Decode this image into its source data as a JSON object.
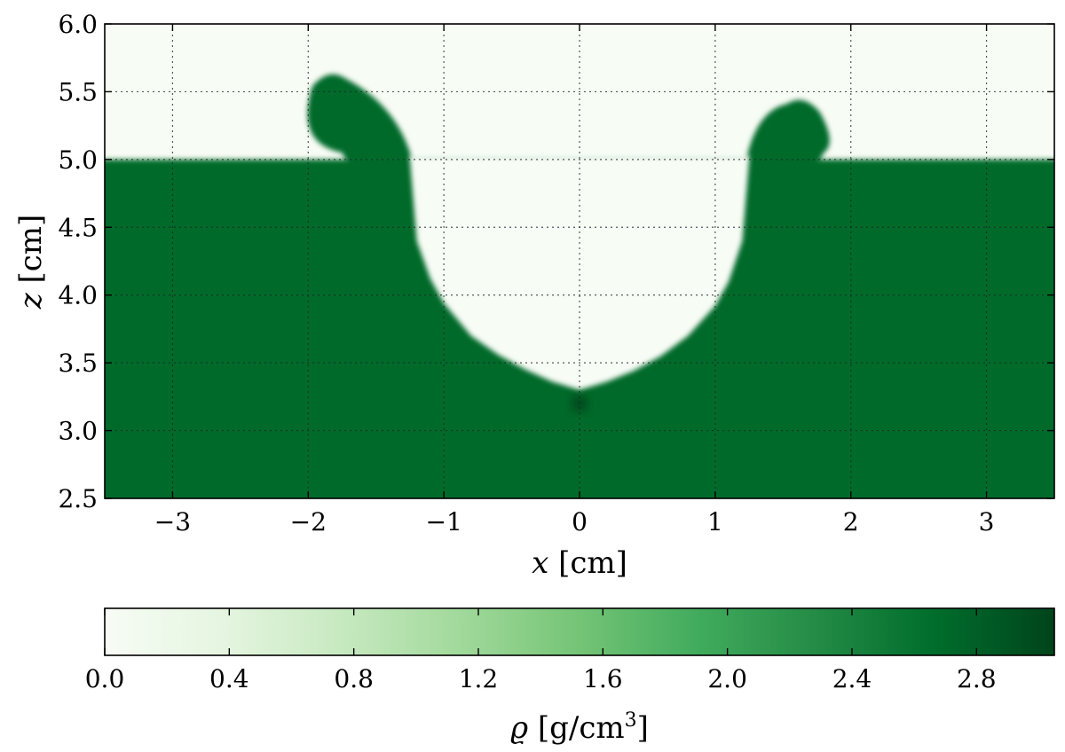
{
  "chart_data": {
    "type": "heatmap",
    "title": "",
    "xlabel": {
      "var": "x",
      "unit": "[cm]"
    },
    "ylabel": {
      "var": "z",
      "unit": "[cm]"
    },
    "xlim": [
      -3.5,
      3.5
    ],
    "ylim": [
      2.5,
      6.0
    ],
    "xticks": [
      -3,
      -2,
      -1,
      0,
      1,
      2,
      3
    ],
    "xtick_labels": [
      "−3",
      "−2",
      "−1",
      "0",
      "1",
      "2",
      "3"
    ],
    "yticks": [
      2.5,
      3.0,
      3.5,
      4.0,
      4.5,
      5.0,
      5.5,
      6.0
    ],
    "ytick_labels": [
      "2.5",
      "3.0",
      "3.5",
      "4.0",
      "4.5",
      "5.0",
      "5.5",
      "6.0"
    ],
    "grid": true,
    "colormap": "Greens",
    "colormap_stops": [
      "#f7fcf5",
      "#e5f5e0",
      "#c7e9c0",
      "#a1d99b",
      "#74c476",
      "#41ab5d",
      "#238b45",
      "#006d2c",
      "#00441b"
    ],
    "background_density": 0.0,
    "material_density": 2.55,
    "material_color": "#006a2c",
    "surface_z": 5.0,
    "cavity_profile": {
      "x": [
        -1.25,
        -1.2,
        -1.1,
        -1.0,
        -0.8,
        -0.6,
        -0.4,
        -0.2,
        0.0,
        0.2,
        0.4,
        0.6,
        0.8,
        1.0,
        1.1,
        1.2,
        1.25
      ],
      "z": [
        5.0,
        4.4,
        4.12,
        3.94,
        3.7,
        3.56,
        3.45,
        3.36,
        3.3,
        3.36,
        3.44,
        3.55,
        3.7,
        3.92,
        4.1,
        4.4,
        5.0
      ]
    },
    "rims": [
      {
        "side": "left",
        "base_x": [
          -1.7,
          -1.2
        ],
        "lip_x": -1.85,
        "lip_z": 5.62
      },
      {
        "side": "right",
        "base_x": [
          1.2,
          1.75
        ],
        "lip_x": 1.65,
        "lip_z": 5.43
      }
    ],
    "dense_spot": {
      "x": 0.0,
      "z": 3.2,
      "density": 3.0
    },
    "colorbar": {
      "label": {
        "var": "ϱ",
        "unit": "[g/cm",
        "power": "3",
        "close": "]"
      },
      "vmin": 0.0,
      "vmax": 3.05,
      "ticks": [
        0.0,
        0.4,
        0.8,
        1.2,
        1.6,
        2.0,
        2.4,
        2.8
      ],
      "tick_labels": [
        "0.0",
        "0.4",
        "0.8",
        "1.2",
        "1.6",
        "2.0",
        "2.4",
        "2.8"
      ]
    }
  }
}
